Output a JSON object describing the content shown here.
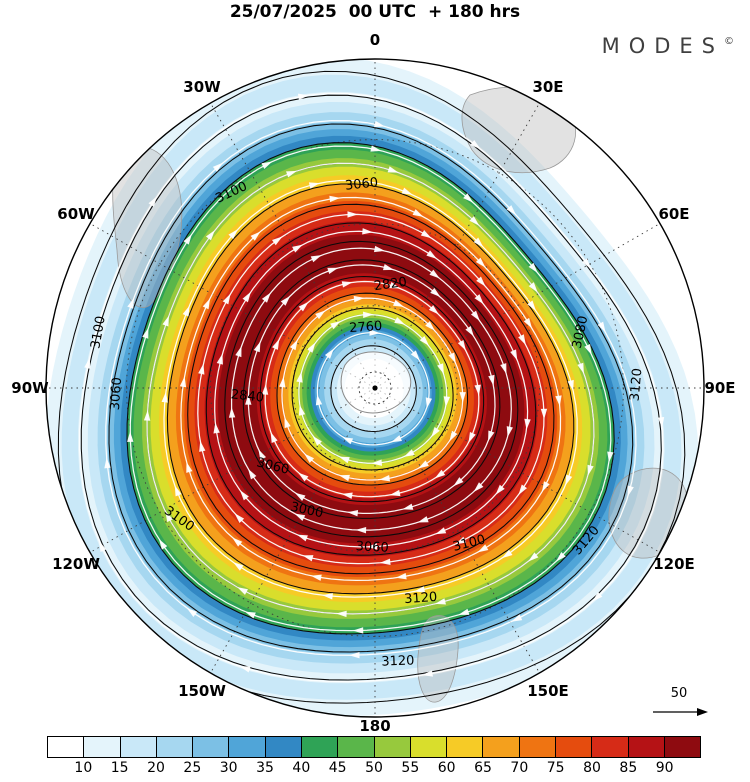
{
  "title": "25/07/2025  00 UTC  + 180 hrs",
  "logo": {
    "text": "MODES",
    "sup": "©"
  },
  "map": {
    "lon_labels": [
      "0",
      "30E",
      "60E",
      "90E",
      "120E",
      "150E",
      "180",
      "150W",
      "120W",
      "90W",
      "60W",
      "30W"
    ],
    "contour_labels": [
      "3100",
      "3060",
      "2820",
      "2760",
      "2840",
      "3100",
      "3060",
      "3080",
      "3120",
      "3060",
      "3000",
      "3100",
      "3100",
      "3120",
      "3060",
      "3120",
      "3120"
    ]
  },
  "reference_vector": {
    "label": "50"
  },
  "colorbar": {
    "ticks": [
      "10",
      "15",
      "20",
      "25",
      "30",
      "35",
      "40",
      "45",
      "50",
      "55",
      "60",
      "65",
      "70",
      "75",
      "80",
      "85",
      "90"
    ],
    "colors": [
      "#ffffff",
      "#e4f4fb",
      "#c9e8f8",
      "#a6d7f0",
      "#7cc0e5",
      "#50a5d8",
      "#3288c4",
      "#2fa356",
      "#5ab64a",
      "#97c93d",
      "#d9de2c",
      "#f6cb26",
      "#f4a01d",
      "#ef7412",
      "#e54c0e",
      "#d62b17",
      "#b51215",
      "#8e0b10"
    ]
  },
  "chart_data": {
    "type": "heatmap",
    "title": "25/07/2025 00 UTC + 180 hrs",
    "description": "Southern Hemisphere polar stereographic forecast map: shaded wind speed with white streamline arrows (circumpolar vortex, clockwise flow) and black geopotential height contours",
    "projection": "polar-stereographic-south",
    "shading_variable": "wind speed",
    "shading_levels": [
      10,
      15,
      20,
      25,
      30,
      35,
      40,
      45,
      50,
      55,
      60,
      65,
      70,
      75,
      80,
      85,
      90
    ],
    "shading_colors": [
      "#ffffff",
      "#e4f4fb",
      "#c9e8f8",
      "#a6d7f0",
      "#7cc0e5",
      "#50a5d8",
      "#3288c4",
      "#2fa356",
      "#5ab64a",
      "#97c93d",
      "#d9de2c",
      "#f6cb26",
      "#f4a01d",
      "#ef7412",
      "#e54c0e",
      "#d62b17",
      "#b51215",
      "#8e0b10"
    ],
    "contour_variable": "geopotential height",
    "contour_labels_visible": [
      2760,
      2820,
      2840,
      3000,
      3060,
      3080,
      3100,
      3120
    ],
    "contour_interval": 20,
    "vortex_center_value": 2760,
    "outermost_contour_value": 3120,
    "meridian_labels": [
      "0",
      "30E",
      "60E",
      "90E",
      "120E",
      "150E",
      "180",
      "150W",
      "120W",
      "90W",
      "60W",
      "30W"
    ],
    "graticule": "dashed, meridians every 30 degrees, 3 latitude circles",
    "reference_vector": 50,
    "legend_position": "bottom"
  }
}
